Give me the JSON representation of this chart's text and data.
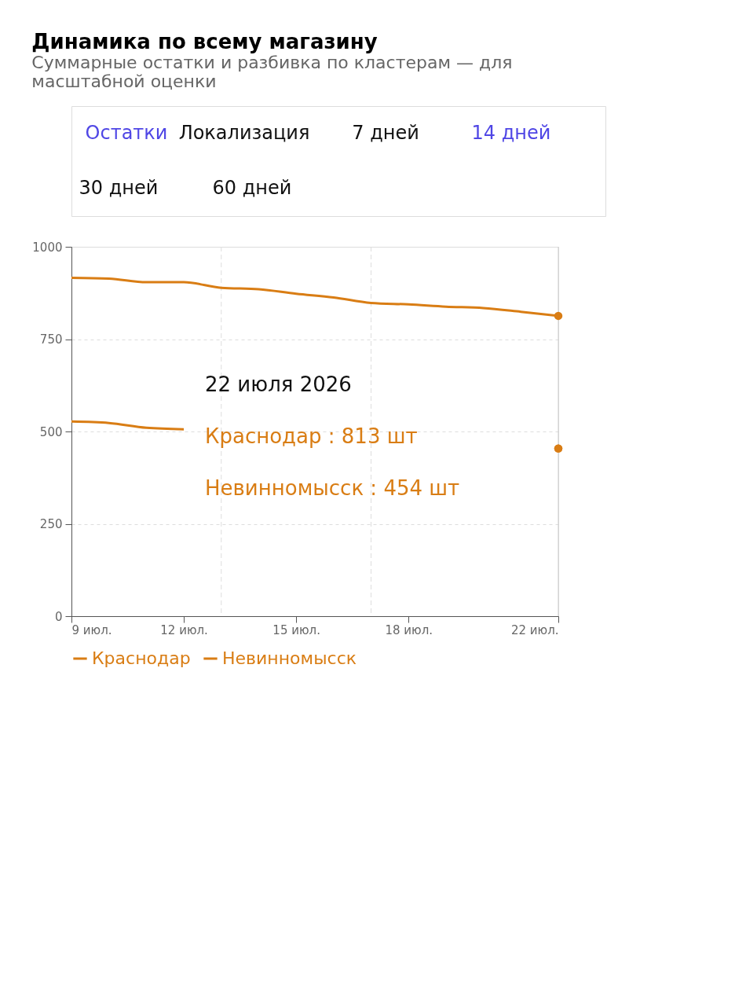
{
  "chart_data": {
    "type": "line",
    "title": "Динамика по всему магазину",
    "subtitle": "Суммарные остатки и разбивка по кластерам — для масштабной оценки",
    "x": [
      "2026-07-09",
      "2026-07-10",
      "2026-07-11",
      "2026-07-12",
      "2026-07-13",
      "2026-07-14",
      "2026-07-15",
      "2026-07-16",
      "2026-07-17",
      "2026-07-18",
      "2026-07-19",
      "2026-07-20",
      "2026-07-21",
      "2026-07-22"
    ],
    "series": [
      {
        "name": "Краснодар",
        "color": "#d97d14",
        "values": [
          916,
          914,
          904,
          904,
          889,
          885,
          873,
          863,
          848,
          844,
          838,
          834,
          824,
          813
        ]
      },
      {
        "name": "Невинномысск",
        "color": "#d97d14",
        "values": [
          527,
          523,
          510,
          506,
          null,
          null,
          null,
          null,
          null,
          null,
          null,
          null,
          null,
          454
        ]
      }
    ],
    "xlim": [
      "2026-07-09",
      "2026-07-22"
    ],
    "xticks": [
      {
        "value": "2026-07-09",
        "label": "9 июл."
      },
      {
        "value": "2026-07-12",
        "label": "12 июл."
      },
      {
        "value": "2026-07-15",
        "label": "15 июл."
      },
      {
        "value": "2026-07-18",
        "label": "18 июл."
      },
      {
        "value": "2026-07-22",
        "label": "22 июл."
      }
    ],
    "ylim": [
      0,
      1000
    ],
    "yticks": [
      0,
      250,
      500,
      750,
      1000
    ],
    "grid": "y",
    "legend": "bottom",
    "marker": "none",
    "line_style": "solid",
    "ref_lines": [
      {
        "axis": "x",
        "value": "2026-07-13",
        "color": "#dddddd",
        "line_style": "dashed"
      },
      {
        "axis": "x",
        "value": "2026-07-17",
        "color": "#dddddd",
        "line_style": "dashed"
      }
    ],
    "annotations": [
      "Остатки",
      "Локализация",
      "7 дней",
      "14 дней",
      "30 дней",
      "60 дней",
      "22 июля 2026",
      "Краснодар : 813 шт",
      "Невинномысск : 454 шт"
    ]
  }
}
